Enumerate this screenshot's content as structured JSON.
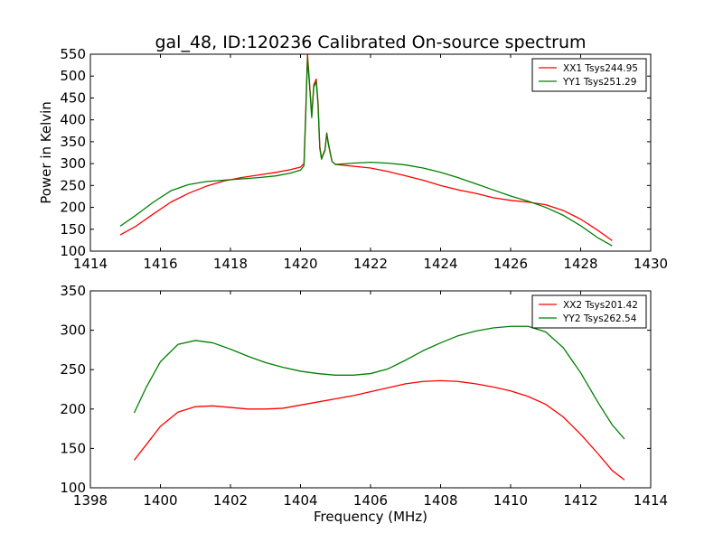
{
  "chart_data": [
    {
      "type": "line",
      "title": "gal_48, ID:120236 Calibrated On-source spectrum",
      "xlabel": "",
      "ylabel": "Power in Kelvin",
      "xlim": [
        1414,
        1430
      ],
      "ylim": [
        100,
        550
      ],
      "xticks": [
        "1414",
        "1416",
        "1418",
        "1420",
        "1422",
        "1424",
        "1426",
        "1428",
        "1430"
      ],
      "yticks": [
        "100",
        "150",
        "200",
        "250",
        "300",
        "350",
        "400",
        "450",
        "500",
        "550"
      ],
      "legend_position": "top-right",
      "series": [
        {
          "name": "XX1 Tsys244.95",
          "color": "#ff0000",
          "points": [
            [
              1414.85,
              137
            ],
            [
              1415.3,
              157
            ],
            [
              1415.8,
              185
            ],
            [
              1416.3,
              212
            ],
            [
              1416.8,
              232
            ],
            [
              1417.3,
              248
            ],
            [
              1417.8,
              260
            ],
            [
              1418.3,
              268
            ],
            [
              1418.8,
              274
            ],
            [
              1419.3,
              280
            ],
            [
              1419.7,
              286
            ],
            [
              1420.0,
              292
            ],
            [
              1420.1,
              300
            ],
            [
              1420.15,
              420
            ],
            [
              1420.2,
              550
            ],
            [
              1420.27,
              470
            ],
            [
              1420.32,
              410
            ],
            [
              1420.38,
              480
            ],
            [
              1420.45,
              493
            ],
            [
              1420.5,
              440
            ],
            [
              1420.55,
              340
            ],
            [
              1420.6,
              312
            ],
            [
              1420.7,
              332
            ],
            [
              1420.75,
              370
            ],
            [
              1420.8,
              345
            ],
            [
              1420.9,
              305
            ],
            [
              1421.0,
              298
            ],
            [
              1421.5,
              294
            ],
            [
              1422.0,
              290
            ],
            [
              1422.5,
              282
            ],
            [
              1423.0,
              272
            ],
            [
              1423.5,
              262
            ],
            [
              1424.0,
              250
            ],
            [
              1424.5,
              240
            ],
            [
              1425.0,
              232
            ],
            [
              1425.5,
              222
            ],
            [
              1426.0,
              216
            ],
            [
              1426.5,
              212
            ],
            [
              1427.0,
              206
            ],
            [
              1427.5,
              193
            ],
            [
              1428.0,
              173
            ],
            [
              1428.5,
              147
            ],
            [
              1428.9,
              124
            ]
          ]
        },
        {
          "name": "YY1 Tsys251.29",
          "color": "#008000",
          "points": [
            [
              1414.85,
              157
            ],
            [
              1415.3,
              182
            ],
            [
              1415.8,
              212
            ],
            [
              1416.3,
              238
            ],
            [
              1416.8,
              252
            ],
            [
              1417.3,
              259
            ],
            [
              1417.8,
              262
            ],
            [
              1418.3,
              265
            ],
            [
              1418.8,
              268
            ],
            [
              1419.3,
              272
            ],
            [
              1419.7,
              278
            ],
            [
              1420.0,
              285
            ],
            [
              1420.1,
              295
            ],
            [
              1420.15,
              410
            ],
            [
              1420.2,
              542
            ],
            [
              1420.27,
              465
            ],
            [
              1420.32,
              405
            ],
            [
              1420.38,
              475
            ],
            [
              1420.45,
              488
            ],
            [
              1420.5,
              435
            ],
            [
              1420.55,
              335
            ],
            [
              1420.6,
              310
            ],
            [
              1420.7,
              330
            ],
            [
              1420.75,
              368
            ],
            [
              1420.8,
              342
            ],
            [
              1420.9,
              305
            ],
            [
              1421.0,
              298
            ],
            [
              1421.5,
              301
            ],
            [
              1422.0,
              303
            ],
            [
              1422.5,
              301
            ],
            [
              1423.0,
              297
            ],
            [
              1423.5,
              290
            ],
            [
              1424.0,
              280
            ],
            [
              1424.5,
              268
            ],
            [
              1425.0,
              254
            ],
            [
              1425.5,
              240
            ],
            [
              1426.0,
              226
            ],
            [
              1426.5,
              214
            ],
            [
              1427.0,
              200
            ],
            [
              1427.5,
              182
            ],
            [
              1428.0,
              158
            ],
            [
              1428.5,
              130
            ],
            [
              1428.9,
              112
            ]
          ]
        }
      ]
    },
    {
      "type": "line",
      "title": "",
      "xlabel": "Frequency (MHz)",
      "ylabel": "",
      "xlim": [
        1398,
        1414
      ],
      "ylim": [
        100,
        350
      ],
      "xticks": [
        "1398",
        "1400",
        "1402",
        "1404",
        "1406",
        "1408",
        "1410",
        "1412",
        "1414"
      ],
      "yticks": [
        "100",
        "150",
        "200",
        "250",
        "300",
        "350"
      ],
      "legend_position": "top-right",
      "series": [
        {
          "name": "XX2 Tsys201.42",
          "color": "#ff0000",
          "points": [
            [
              1399.25,
              135
            ],
            [
              1399.6,
              155
            ],
            [
              1400.0,
              178
            ],
            [
              1400.5,
              196
            ],
            [
              1401.0,
              203
            ],
            [
              1401.5,
              204
            ],
            [
              1402.0,
              202
            ],
            [
              1402.5,
              200
            ],
            [
              1403.0,
              200
            ],
            [
              1403.5,
              201
            ],
            [
              1404.0,
              205
            ],
            [
              1404.5,
              209
            ],
            [
              1405.0,
              213
            ],
            [
              1405.5,
              217
            ],
            [
              1406.0,
              222
            ],
            [
              1406.5,
              227
            ],
            [
              1407.0,
              232
            ],
            [
              1407.5,
              235
            ],
            [
              1408.0,
              236
            ],
            [
              1408.5,
              235
            ],
            [
              1409.0,
              232
            ],
            [
              1409.5,
              228
            ],
            [
              1410.0,
              223
            ],
            [
              1410.5,
              216
            ],
            [
              1411.0,
              206
            ],
            [
              1411.5,
              190
            ],
            [
              1412.0,
              168
            ],
            [
              1412.5,
              143
            ],
            [
              1412.9,
              122
            ],
            [
              1413.25,
              110
            ]
          ]
        },
        {
          "name": "YY2 Tsys262.54",
          "color": "#008000",
          "points": [
            [
              1399.25,
              195
            ],
            [
              1399.6,
              228
            ],
            [
              1400.0,
              260
            ],
            [
              1400.5,
              282
            ],
            [
              1401.0,
              287
            ],
            [
              1401.5,
              284
            ],
            [
              1402.0,
              276
            ],
            [
              1402.5,
              267
            ],
            [
              1403.0,
              259
            ],
            [
              1403.5,
              253
            ],
            [
              1404.0,
              248
            ],
            [
              1404.5,
              245
            ],
            [
              1405.0,
              243
            ],
            [
              1405.5,
              243
            ],
            [
              1406.0,
              245
            ],
            [
              1406.5,
              251
            ],
            [
              1407.0,
              262
            ],
            [
              1407.5,
              274
            ],
            [
              1408.0,
              284
            ],
            [
              1408.5,
              293
            ],
            [
              1409.0,
              299
            ],
            [
              1409.5,
              303
            ],
            [
              1410.0,
              305
            ],
            [
              1410.5,
              305
            ],
            [
              1411.0,
              298
            ],
            [
              1411.5,
              278
            ],
            [
              1412.0,
              246
            ],
            [
              1412.5,
              208
            ],
            [
              1412.9,
              180
            ],
            [
              1413.25,
              162
            ]
          ]
        }
      ]
    }
  ]
}
